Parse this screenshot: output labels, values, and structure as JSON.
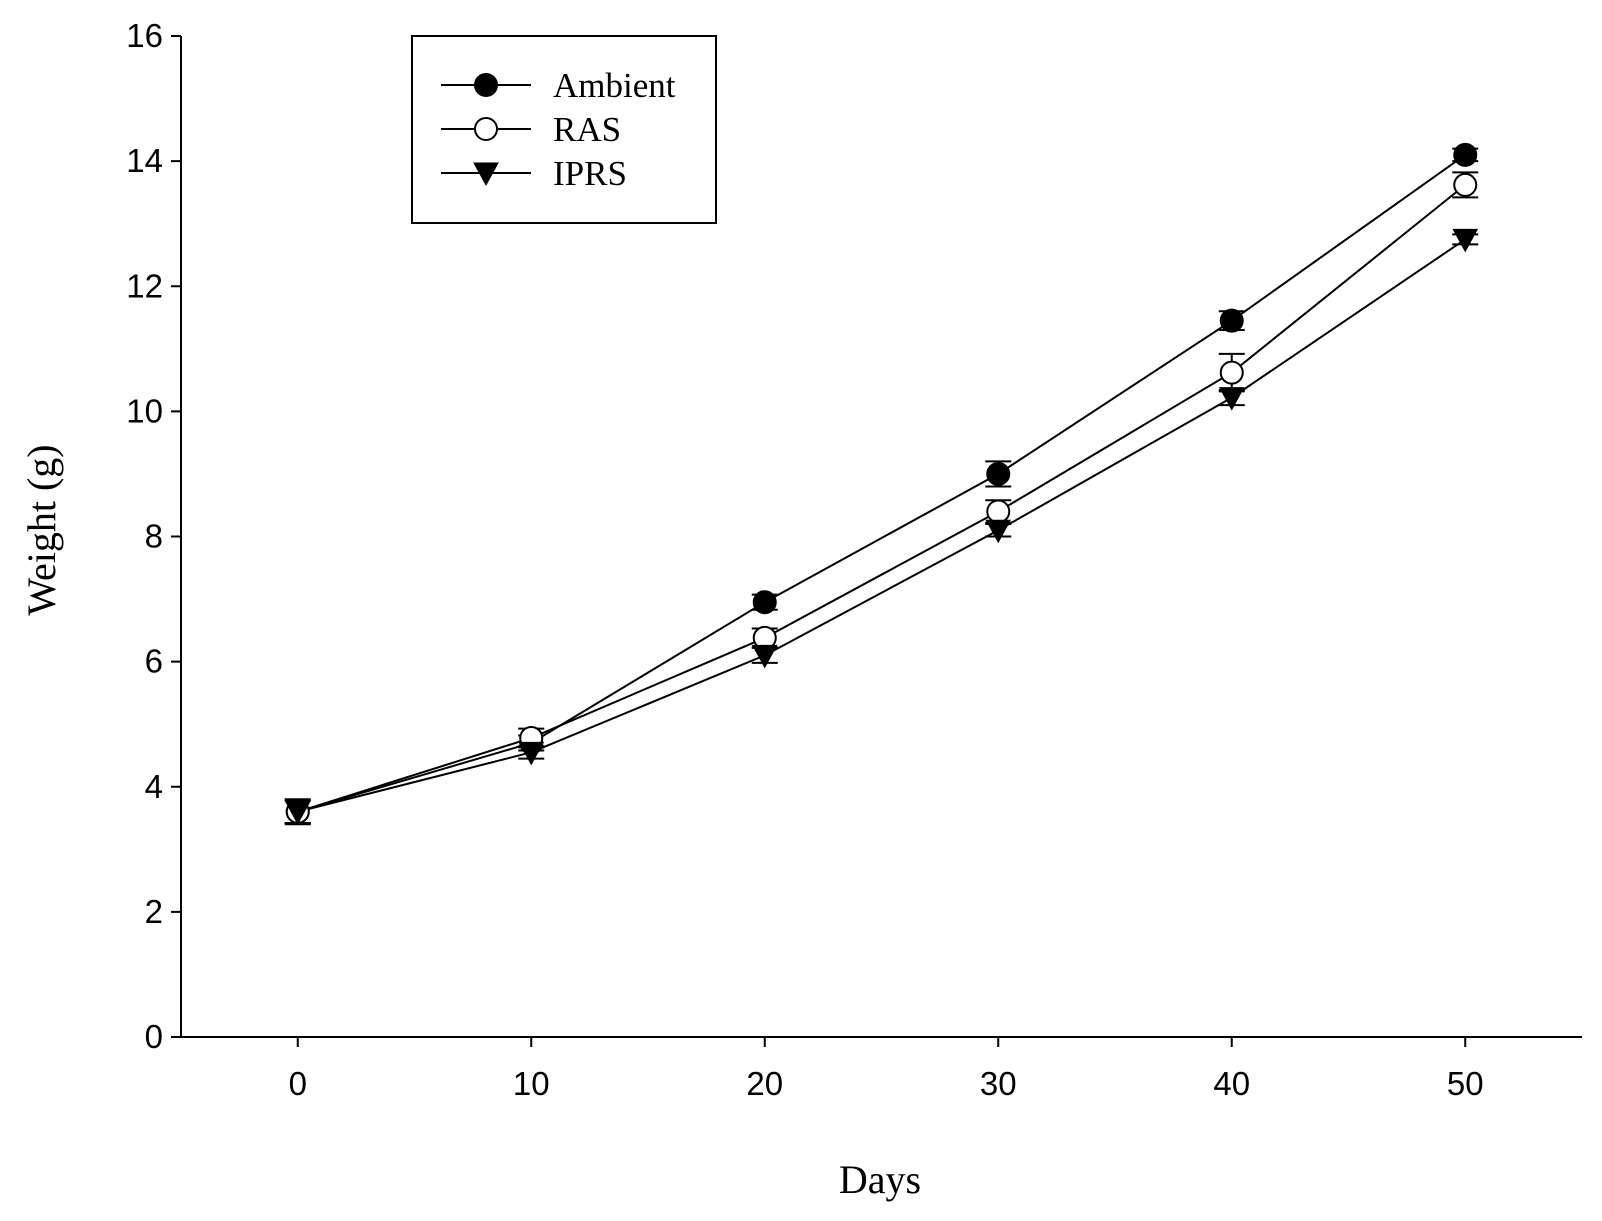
{
  "chart_data": {
    "type": "line",
    "title": "",
    "xlabel": "Days",
    "ylabel": "Weight (g)",
    "xlim": [
      -5,
      55
    ],
    "ylim": [
      0,
      16
    ],
    "xticks": [
      0,
      10,
      20,
      30,
      40,
      50
    ],
    "yticks": [
      0,
      2,
      4,
      6,
      8,
      10,
      12,
      14,
      16
    ],
    "grid": false,
    "legend_position": "top-left",
    "x": [
      0,
      10,
      20,
      30,
      40,
      50
    ],
    "series": [
      {
        "name": "Ambient",
        "marker": "filled-circle",
        "values": [
          3.6,
          4.7,
          6.95,
          9.0,
          11.45,
          14.1
        ],
        "errors": [
          0.2,
          0.12,
          0.12,
          0.2,
          0.15,
          0.1
        ]
      },
      {
        "name": "RAS",
        "marker": "open-circle",
        "values": [
          3.6,
          4.78,
          6.38,
          8.4,
          10.62,
          13.62
        ],
        "errors": [
          0.18,
          0.15,
          0.15,
          0.18,
          0.3,
          0.2
        ]
      },
      {
        "name": "IPRS",
        "marker": "filled-triangle-down",
        "values": [
          3.6,
          4.55,
          6.1,
          8.1,
          10.22,
          12.75
        ],
        "errors": [
          0.18,
          0.1,
          0.12,
          0.1,
          0.12,
          0.08
        ]
      }
    ]
  },
  "colors": {
    "ink": "#000000",
    "background": "#ffffff"
  }
}
